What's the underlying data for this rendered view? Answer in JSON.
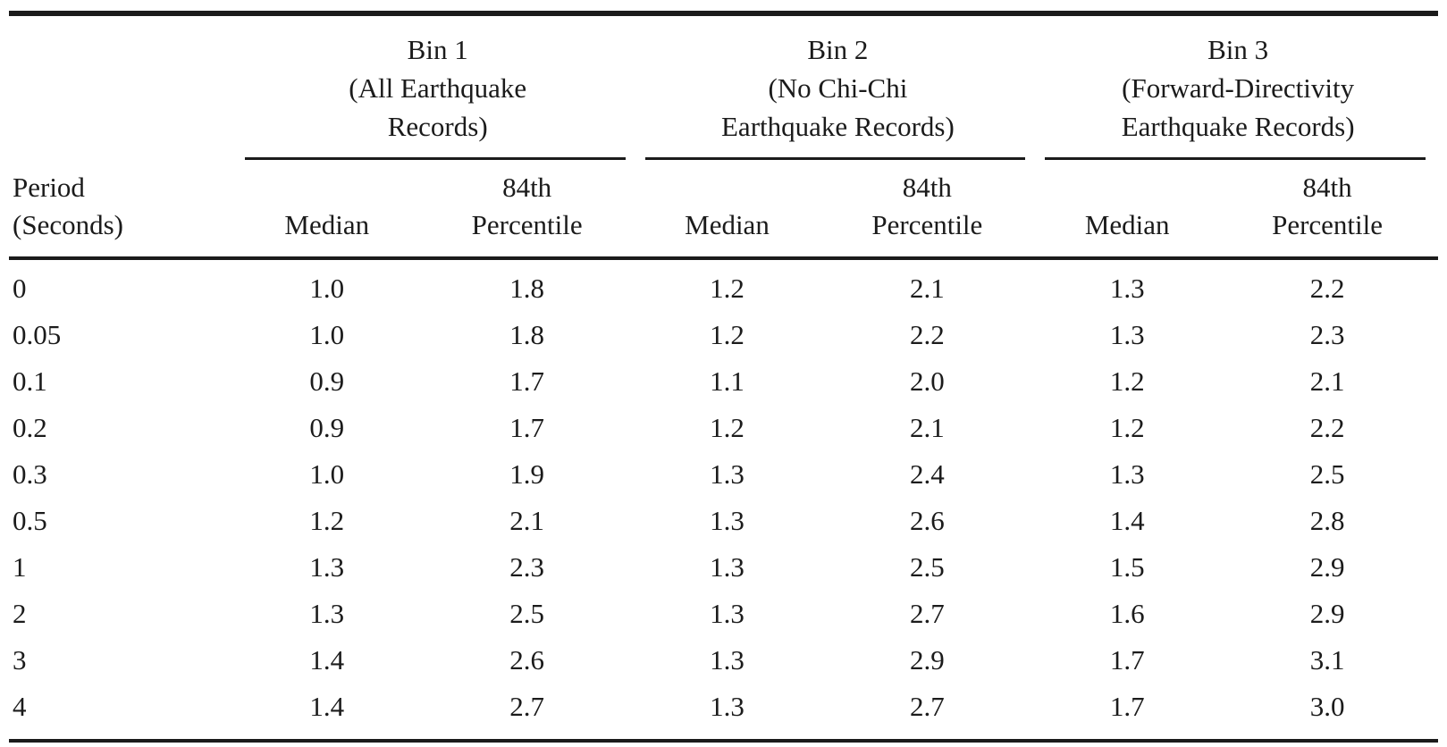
{
  "table": {
    "period_header": [
      "Period",
      "(Seconds)"
    ],
    "groups": [
      {
        "lines": [
          "Bin 1",
          "(All Earthquake",
          "Records)"
        ]
      },
      {
        "lines": [
          "Bin 2",
          "(No Chi-Chi",
          "Earthquake Records)"
        ]
      },
      {
        "lines": [
          "Bin 3",
          "(Forward-Directivity",
          "Earthquake Records)"
        ]
      }
    ],
    "subheaders": {
      "median": "Median",
      "p84": [
        "84th",
        "Percentile"
      ]
    },
    "rows": [
      {
        "period": "0",
        "values": [
          "1.0",
          "1.8",
          "1.2",
          "2.1",
          "1.3",
          "2.2"
        ]
      },
      {
        "period": "0.05",
        "values": [
          "1.0",
          "1.8",
          "1.2",
          "2.2",
          "1.3",
          "2.3"
        ]
      },
      {
        "period": "0.1",
        "values": [
          "0.9",
          "1.7",
          "1.1",
          "2.0",
          "1.2",
          "2.1"
        ]
      },
      {
        "period": "0.2",
        "values": [
          "0.9",
          "1.7",
          "1.2",
          "2.1",
          "1.2",
          "2.2"
        ]
      },
      {
        "period": "0.3",
        "values": [
          "1.0",
          "1.9",
          "1.3",
          "2.4",
          "1.3",
          "2.5"
        ]
      },
      {
        "period": "0.5",
        "values": [
          "1.2",
          "2.1",
          "1.3",
          "2.6",
          "1.4",
          "2.8"
        ]
      },
      {
        "period": "1",
        "values": [
          "1.3",
          "2.3",
          "1.3",
          "2.5",
          "1.5",
          "2.9"
        ]
      },
      {
        "period": "2",
        "values": [
          "1.3",
          "2.5",
          "1.3",
          "2.7",
          "1.6",
          "2.9"
        ]
      },
      {
        "period": "3",
        "values": [
          "1.4",
          "2.6",
          "1.3",
          "2.9",
          "1.7",
          "3.1"
        ]
      },
      {
        "period": "4",
        "values": [
          "1.4",
          "2.7",
          "1.3",
          "2.7",
          "1.7",
          "3.0"
        ]
      }
    ],
    "text_color": "#1b1b1b",
    "background_color": "#ffffff"
  },
  "chart_data": {
    "type": "table",
    "columns": [
      "Period (Seconds)",
      "Bin 1 (All Earthquake Records) Median",
      "Bin 1 (All Earthquake Records) 84th Percentile",
      "Bin 2 (No Chi-Chi Earthquake Records) Median",
      "Bin 2 (No Chi-Chi Earthquake Records) 84th Percentile",
      "Bin 3 (Forward-Directivity Earthquake Records) Median",
      "Bin 3 (Forward-Directivity Earthquake Records) 84th Percentile"
    ],
    "rows": [
      [
        0,
        1.0,
        1.8,
        1.2,
        2.1,
        1.3,
        2.2
      ],
      [
        0.05,
        1.0,
        1.8,
        1.2,
        2.2,
        1.3,
        2.3
      ],
      [
        0.1,
        0.9,
        1.7,
        1.1,
        2.0,
        1.2,
        2.1
      ],
      [
        0.2,
        0.9,
        1.7,
        1.2,
        2.1,
        1.2,
        2.2
      ],
      [
        0.3,
        1.0,
        1.9,
        1.3,
        2.4,
        1.3,
        2.5
      ],
      [
        0.5,
        1.2,
        2.1,
        1.3,
        2.6,
        1.4,
        2.8
      ],
      [
        1,
        1.3,
        2.3,
        1.3,
        2.5,
        1.5,
        2.9
      ],
      [
        2,
        1.3,
        2.5,
        1.3,
        2.7,
        1.6,
        2.9
      ],
      [
        3,
        1.4,
        2.6,
        1.3,
        2.9,
        1.7,
        3.1
      ],
      [
        4,
        1.4,
        2.7,
        1.3,
        2.7,
        1.7,
        3.0
      ]
    ]
  }
}
